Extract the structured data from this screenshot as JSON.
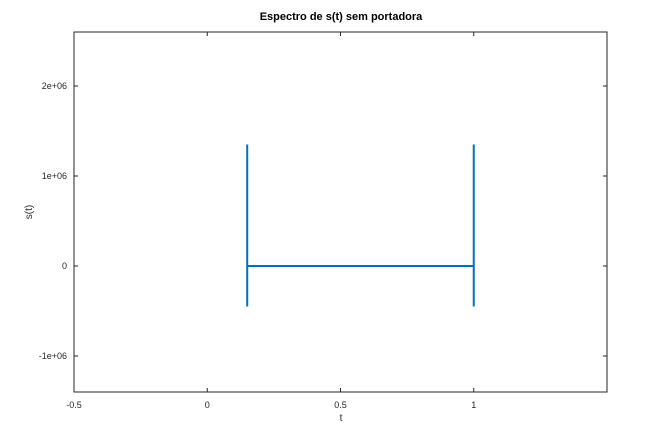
{
  "chart_data": {
    "type": "line",
    "title": "Espectro de s(t) sem portadora",
    "xlabel": "t",
    "ylabel": "s(t)",
    "xlim": [
      -0.5,
      1.5
    ],
    "ylim": [
      -1400000,
      2600000
    ],
    "xticks": [
      -0.5,
      0,
      0.5,
      1
    ],
    "xtick_labels": [
      "-0.5",
      "0",
      "0.5",
      "1"
    ],
    "yticks": [
      -1000000,
      0,
      1000000,
      2000000
    ],
    "ytick_labels": [
      "-1e+06",
      "0",
      "1e+06",
      "2e+06"
    ],
    "grid": false,
    "legend": false,
    "series": [
      {
        "color": "#0072bd",
        "x": [
          0.15,
          0.15,
          0.15,
          0.15,
          0.155,
          0.5,
          0.995,
          1.0,
          1.0,
          1.0,
          1.0
        ],
        "y": [
          0,
          1350000,
          -450000,
          0,
          0,
          0,
          0,
          0,
          1350000,
          -450000,
          0
        ]
      }
    ]
  }
}
